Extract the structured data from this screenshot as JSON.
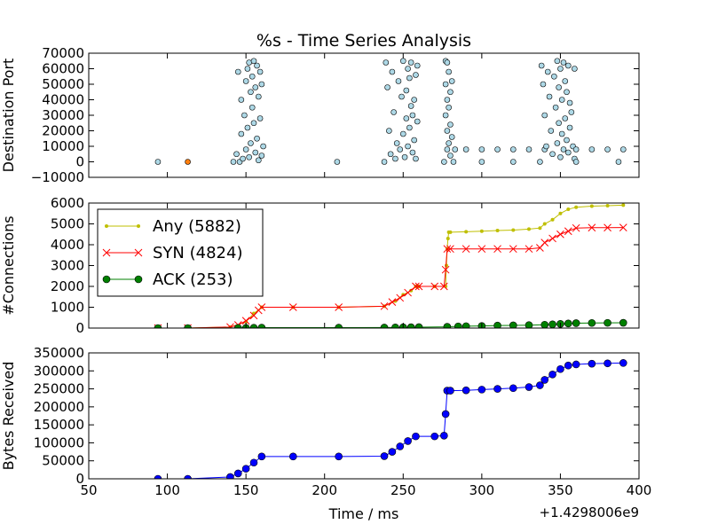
{
  "chart_data": [
    {
      "type": "scatter",
      "title": "%s - Time Series Analysis",
      "xlabel": "",
      "ylabel": "Destination Port",
      "xlim": [
        50,
        400
      ],
      "ylim": [
        -10000,
        70000
      ],
      "yticks": [
        -10000,
        0,
        10000,
        20000,
        30000,
        40000,
        50000,
        60000,
        70000
      ],
      "ytick_labels": [
        "−10000",
        "0",
        "10000",
        "20000",
        "30000",
        "40000",
        "50000",
        "60000",
        "70000"
      ],
      "color": "#add8e6",
      "highlight_color": "#ff7f0e",
      "points": [
        [
          94,
          0
        ],
        [
          113,
          0
        ],
        [
          142,
          0
        ],
        [
          144,
          5000
        ],
        [
          145,
          58000
        ],
        [
          146,
          0
        ],
        [
          147,
          40000
        ],
        [
          147,
          18000
        ],
        [
          148,
          2000
        ],
        [
          149,
          30000
        ],
        [
          150,
          52000
        ],
        [
          150,
          8000
        ],
        [
          151,
          60000
        ],
        [
          151,
          22000
        ],
        [
          152,
          64000
        ],
        [
          152,
          3000
        ],
        [
          153,
          45000
        ],
        [
          153,
          12000
        ],
        [
          154,
          55000
        ],
        [
          154,
          35000
        ],
        [
          155,
          65000
        ],
        [
          155,
          25000
        ],
        [
          156,
          48000
        ],
        [
          156,
          6000
        ],
        [
          157,
          62000
        ],
        [
          157,
          15000
        ],
        [
          158,
          42000
        ],
        [
          158,
          1000
        ],
        [
          159,
          58000
        ],
        [
          159,
          28000
        ],
        [
          160,
          50000
        ],
        [
          160,
          4000
        ],
        [
          161,
          10000
        ],
        [
          208,
          0
        ],
        [
          238,
          0
        ],
        [
          239,
          64000
        ],
        [
          240,
          48000
        ],
        [
          241,
          20000
        ],
        [
          242,
          5000
        ],
        [
          243,
          58000
        ],
        [
          244,
          32000
        ],
        [
          245,
          2000
        ],
        [
          246,
          12000
        ],
        [
          247,
          52000
        ],
        [
          248,
          8000
        ],
        [
          249,
          42000
        ],
        [
          250,
          65000
        ],
        [
          250,
          18000
        ],
        [
          251,
          3000
        ],
        [
          252,
          46000
        ],
        [
          252,
          28000
        ],
        [
          253,
          60000
        ],
        [
          253,
          10000
        ],
        [
          254,
          54000
        ],
        [
          254,
          22000
        ],
        [
          255,
          64000
        ],
        [
          255,
          36000
        ],
        [
          256,
          30000
        ],
        [
          256,
          6000
        ],
        [
          257,
          40000
        ],
        [
          257,
          14000
        ],
        [
          258,
          56000
        ],
        [
          258,
          2000
        ],
        [
          259,
          62000
        ],
        [
          259,
          26000
        ],
        [
          276,
          0
        ],
        [
          277,
          65000
        ],
        [
          277,
          50000
        ],
        [
          277,
          30000
        ],
        [
          278,
          64000
        ],
        [
          278,
          40000
        ],
        [
          278,
          20000
        ],
        [
          278,
          8000
        ],
        [
          279,
          58000
        ],
        [
          279,
          35000
        ],
        [
          279,
          12000
        ],
        [
          280,
          45000
        ],
        [
          280,
          24000
        ],
        [
          280,
          4000
        ],
        [
          281,
          52000
        ],
        [
          281,
          16000
        ],
        [
          282,
          0
        ],
        [
          283,
          8000
        ],
        [
          290,
          8000
        ],
        [
          300,
          8000
        ],
        [
          310,
          8000
        ],
        [
          320,
          8000
        ],
        [
          330,
          8000
        ],
        [
          340,
          8000
        ],
        [
          300,
          0
        ],
        [
          320,
          0
        ],
        [
          337,
          0
        ],
        [
          338,
          62000
        ],
        [
          339,
          50000
        ],
        [
          340,
          30000
        ],
        [
          341,
          10000
        ],
        [
          342,
          58000
        ],
        [
          343,
          42000
        ],
        [
          344,
          20000
        ],
        [
          345,
          5000
        ],
        [
          346,
          55000
        ],
        [
          347,
          35000
        ],
        [
          348,
          65000
        ],
        [
          348,
          12000
        ],
        [
          349,
          48000
        ],
        [
          349,
          25000
        ],
        [
          350,
          60000
        ],
        [
          350,
          3000
        ],
        [
          351,
          40000
        ],
        [
          351,
          18000
        ],
        [
          352,
          64000
        ],
        [
          352,
          8000
        ],
        [
          353,
          52000
        ],
        [
          353,
          28000
        ],
        [
          354,
          45000
        ],
        [
          354,
          14000
        ],
        [
          355,
          62000
        ],
        [
          355,
          6000
        ],
        [
          356,
          38000
        ],
        [
          356,
          22000
        ],
        [
          357,
          32000
        ],
        [
          358,
          10000
        ],
        [
          359,
          60000
        ],
        [
          359,
          2000
        ],
        [
          360,
          8000
        ],
        [
          360,
          0
        ],
        [
          370,
          8000
        ],
        [
          380,
          8000
        ],
        [
          390,
          8000
        ],
        [
          387,
          0
        ]
      ]
    },
    {
      "type": "line",
      "xlabel": "",
      "ylabel": "#Connections",
      "xlim": [
        50,
        400
      ],
      "ylim": [
        0,
        6000
      ],
      "yticks": [
        0,
        1000,
        2000,
        3000,
        4000,
        5000,
        6000
      ],
      "ytick_labels": [
        "0",
        "1000",
        "2000",
        "3000",
        "4000",
        "5000",
        "6000"
      ],
      "legend_position": "top-left",
      "series": [
        {
          "name": "Any (5882)",
          "color": "#bfbf00",
          "marker": "dot",
          "x": [
            94,
            113,
            140,
            150,
            155,
            160,
            180,
            209,
            238,
            245,
            250,
            255,
            258,
            260,
            270,
            277,
            277.5,
            278,
            278.5,
            279,
            280,
            290,
            300,
            310,
            320,
            330,
            337,
            340,
            345,
            350,
            355,
            360,
            370,
            380,
            390
          ],
          "y": [
            0,
            0,
            50,
            300,
            700,
            1000,
            1000,
            1000,
            1050,
            1300,
            1600,
            1800,
            2000,
            2000,
            2000,
            2000,
            3000,
            3800,
            4300,
            4600,
            4600,
            4620,
            4650,
            4680,
            4700,
            4750,
            4800,
            5000,
            5200,
            5500,
            5700,
            5800,
            5850,
            5870,
            5900
          ]
        },
        {
          "name": "SYN (4824)",
          "color": "#ff0000",
          "marker": "x",
          "x": [
            94,
            113,
            140,
            145,
            150,
            155,
            158,
            160,
            180,
            209,
            238,
            243,
            248,
            253,
            258,
            260,
            270,
            276,
            277,
            278,
            280,
            290,
            300,
            310,
            320,
            330,
            337,
            340,
            345,
            350,
            355,
            360,
            370,
            380,
            390
          ],
          "y": [
            0,
            0,
            50,
            150,
            350,
            600,
            850,
            1000,
            1000,
            1000,
            1050,
            1250,
            1450,
            1700,
            2000,
            2000,
            2000,
            2000,
            2800,
            3800,
            3800,
            3800,
            3800,
            3800,
            3800,
            3800,
            3850,
            4100,
            4300,
            4500,
            4650,
            4800,
            4820,
            4820,
            4824
          ]
        },
        {
          "name": "ACK (253)",
          "color": "#008000",
          "marker": "circle",
          "x": [
            94,
            113,
            145,
            150,
            155,
            160,
            209,
            238,
            245,
            250,
            255,
            260,
            278,
            285,
            290,
            300,
            310,
            320,
            330,
            340,
            345,
            350,
            355,
            360,
            370,
            380,
            390
          ],
          "y": [
            0,
            0,
            5,
            10,
            15,
            20,
            20,
            25,
            30,
            35,
            40,
            45,
            60,
            80,
            90,
            100,
            120,
            130,
            140,
            160,
            180,
            200,
            220,
            235,
            245,
            250,
            253
          ]
        }
      ]
    },
    {
      "type": "line",
      "xlabel": "Time / ms",
      "ylabel": "Bytes Received",
      "x_offset_label": "+1.4298006e9",
      "xlim": [
        50,
        400
      ],
      "ylim": [
        0,
        350000
      ],
      "xticks": [
        50,
        100,
        150,
        200,
        250,
        300,
        350,
        400
      ],
      "xtick_labels": [
        "50",
        "100",
        "150",
        "200",
        "250",
        "300",
        "350",
        "400"
      ],
      "yticks": [
        0,
        50000,
        100000,
        150000,
        200000,
        250000,
        300000,
        350000
      ],
      "ytick_labels": [
        "0",
        "50000",
        "100000",
        "150000",
        "200000",
        "250000",
        "300000",
        "350000"
      ],
      "series": [
        {
          "color": "#0000ff",
          "marker": "circle",
          "x": [
            94,
            113,
            140,
            145,
            150,
            155,
            160,
            180,
            209,
            238,
            243,
            248,
            253,
            258,
            270,
            276,
            277,
            278,
            280,
            290,
            300,
            310,
            320,
            330,
            337,
            340,
            345,
            350,
            355,
            360,
            370,
            380,
            390
          ],
          "y": [
            0,
            0,
            5000,
            15000,
            28000,
            45000,
            62000,
            62000,
            62000,
            63000,
            75000,
            90000,
            105000,
            118000,
            118000,
            120000,
            180000,
            245000,
            245000,
            246000,
            248000,
            250000,
            252000,
            255000,
            260000,
            275000,
            290000,
            305000,
            315000,
            318000,
            320000,
            321000,
            322000
          ]
        }
      ]
    }
  ]
}
